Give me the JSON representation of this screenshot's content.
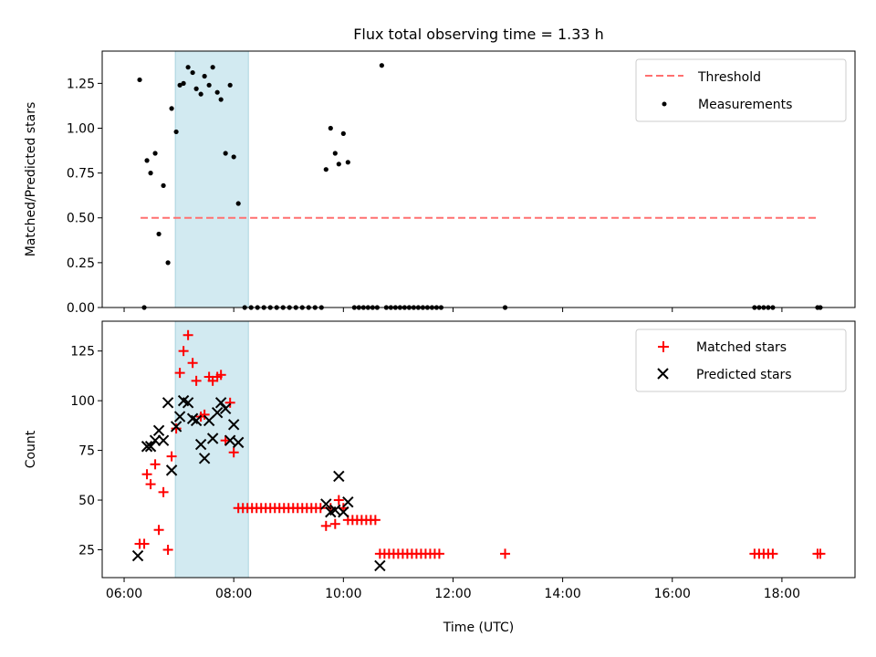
{
  "figure": {
    "title": "Flux total observing time = 1.33 h"
  },
  "chart_data": [
    {
      "type": "scatter",
      "panel": "top",
      "xlabel": "",
      "ylabel": "Matched/Predicted stars",
      "xlim": [
        "05:36",
        "19:20"
      ],
      "ylim": [
        0,
        1.43
      ],
      "yticks": [
        "0.00",
        "0.25",
        "0.50",
        "0.75",
        "1.00",
        "1.25"
      ],
      "ytick_values": [
        0,
        0.25,
        0.5,
        0.75,
        1.0,
        1.25
      ],
      "highlight_span": {
        "start": "06:56",
        "end": "08:16",
        "color": "#add8e6"
      },
      "legend": {
        "position": "top-right",
        "entries": [
          "Threshold",
          "Measurements"
        ]
      },
      "threshold": {
        "name": "Threshold",
        "x_start": "06:18",
        "x_end": "18:40",
        "y": 0.5,
        "color": "#ff7070",
        "style": "dashed"
      },
      "series": [
        {
          "name": "Measurements",
          "marker": "dot",
          "color": "#000000",
          "points": [
            [
              "06:17",
              1.27
            ],
            [
              "06:22",
              0.0
            ],
            [
              "06:25",
              0.82
            ],
            [
              "06:29",
              0.75
            ],
            [
              "06:34",
              0.86
            ],
            [
              "06:38",
              0.41
            ],
            [
              "06:43",
              0.68
            ],
            [
              "06:48",
              0.25
            ],
            [
              "06:52",
              1.11
            ],
            [
              "06:57",
              0.98
            ],
            [
              "07:01",
              1.24
            ],
            [
              "07:05",
              1.25
            ],
            [
              "07:10",
              1.34
            ],
            [
              "07:15",
              1.31
            ],
            [
              "07:19",
              1.22
            ],
            [
              "07:24",
              1.19
            ],
            [
              "07:28",
              1.29
            ],
            [
              "07:33",
              1.24
            ],
            [
              "07:37",
              1.34
            ],
            [
              "07:42",
              1.2
            ],
            [
              "07:46",
              1.16
            ],
            [
              "07:51",
              0.86
            ],
            [
              "07:56",
              1.24
            ],
            [
              "08:00",
              0.84
            ],
            [
              "08:05",
              0.58
            ],
            [
              "08:12",
              0.0
            ],
            [
              "08:19",
              0.0
            ],
            [
              "08:26",
              0.0
            ],
            [
              "08:33",
              0.0
            ],
            [
              "08:40",
              0.0
            ],
            [
              "08:47",
              0.0
            ],
            [
              "08:54",
              0.0
            ],
            [
              "09:01",
              0.0
            ],
            [
              "09:08",
              0.0
            ],
            [
              "09:15",
              0.0
            ],
            [
              "09:22",
              0.0
            ],
            [
              "09:29",
              0.0
            ],
            [
              "09:36",
              0.0
            ],
            [
              "09:41",
              0.77
            ],
            [
              "09:46",
              1.0
            ],
            [
              "09:51",
              0.86
            ],
            [
              "09:55",
              0.8
            ],
            [
              "10:00",
              0.97
            ],
            [
              "10:05",
              0.81
            ],
            [
              "10:12",
              0.0
            ],
            [
              "10:17",
              0.0
            ],
            [
              "10:22",
              0.0
            ],
            [
              "10:27",
              0.0
            ],
            [
              "10:32",
              0.0
            ],
            [
              "10:37",
              0.0
            ],
            [
              "10:42",
              1.35
            ],
            [
              "10:47",
              0.0
            ],
            [
              "10:52",
              0.0
            ],
            [
              "10:57",
              0.0
            ],
            [
              "11:02",
              0.0
            ],
            [
              "11:07",
              0.0
            ],
            [
              "11:12",
              0.0
            ],
            [
              "11:17",
              0.0
            ],
            [
              "11:22",
              0.0
            ],
            [
              "11:27",
              0.0
            ],
            [
              "11:32",
              0.0
            ],
            [
              "11:37",
              0.0
            ],
            [
              "11:42",
              0.0
            ],
            [
              "11:47",
              0.0
            ],
            [
              "12:57",
              0.0
            ],
            [
              "17:30",
              0.0
            ],
            [
              "17:35",
              0.0
            ],
            [
              "17:40",
              0.0
            ],
            [
              "17:45",
              0.0
            ],
            [
              "17:50",
              0.0
            ],
            [
              "18:39",
              0.0
            ],
            [
              "18:42",
              0.0
            ]
          ]
        }
      ]
    },
    {
      "type": "scatter",
      "panel": "bottom",
      "xlabel": "Time (UTC)",
      "ylabel": "Count",
      "xlim": [
        "05:36",
        "19:20"
      ],
      "xticks": [
        "06:00",
        "08:00",
        "10:00",
        "12:00",
        "14:00",
        "16:00",
        "18:00"
      ],
      "ylim": [
        11,
        140
      ],
      "yticks": [
        "25",
        "50",
        "75",
        "100",
        "125"
      ],
      "ytick_values": [
        25,
        50,
        75,
        100,
        125
      ],
      "highlight_span": {
        "start": "06:56",
        "end": "08:16",
        "color": "#add8e6"
      },
      "legend": {
        "position": "top-right",
        "entries": [
          "Matched stars",
          "Predicted stars"
        ]
      },
      "series": [
        {
          "name": "Matched stars",
          "marker": "plus",
          "color": "#ff0000",
          "points": [
            [
              "06:17",
              28
            ],
            [
              "06:22",
              28
            ],
            [
              "06:25",
              63
            ],
            [
              "06:29",
              58
            ],
            [
              "06:34",
              68
            ],
            [
              "06:38",
              35
            ],
            [
              "06:43",
              54
            ],
            [
              "06:48",
              25
            ],
            [
              "06:52",
              72
            ],
            [
              "06:57",
              86
            ],
            [
              "07:01",
              114
            ],
            [
              "07:05",
              125
            ],
            [
              "07:10",
              133
            ],
            [
              "07:15",
              119
            ],
            [
              "07:19",
              110
            ],
            [
              "07:24",
              92
            ],
            [
              "07:28",
              93
            ],
            [
              "07:33",
              112
            ],
            [
              "07:37",
              110
            ],
            [
              "07:42",
              112
            ],
            [
              "07:46",
              113
            ],
            [
              "07:51",
              80
            ],
            [
              "07:56",
              99
            ],
            [
              "08:00",
              74
            ],
            [
              "08:05",
              46
            ],
            [
              "08:10",
              46
            ],
            [
              "08:15",
              46
            ],
            [
              "08:20",
              46
            ],
            [
              "08:25",
              46
            ],
            [
              "08:30",
              46
            ],
            [
              "08:35",
              46
            ],
            [
              "08:40",
              46
            ],
            [
              "08:45",
              46
            ],
            [
              "08:50",
              46
            ],
            [
              "08:55",
              46
            ],
            [
              "09:00",
              46
            ],
            [
              "09:05",
              46
            ],
            [
              "09:10",
              46
            ],
            [
              "09:15",
              46
            ],
            [
              "09:20",
              46
            ],
            [
              "09:25",
              46
            ],
            [
              "09:30",
              46
            ],
            [
              "09:35",
              46
            ],
            [
              "09:41",
              37
            ],
            [
              "09:46",
              46
            ],
            [
              "09:51",
              38
            ],
            [
              "09:55",
              50
            ],
            [
              "10:00",
              46
            ],
            [
              "10:05",
              40
            ],
            [
              "10:10",
              40
            ],
            [
              "10:15",
              40
            ],
            [
              "10:20",
              40
            ],
            [
              "10:25",
              40
            ],
            [
              "10:30",
              40
            ],
            [
              "10:35",
              40
            ],
            [
              "10:40",
              23
            ],
            [
              "10:45",
              23
            ],
            [
              "10:50",
              23
            ],
            [
              "10:55",
              23
            ],
            [
              "11:00",
              23
            ],
            [
              "11:05",
              23
            ],
            [
              "11:10",
              23
            ],
            [
              "11:15",
              23
            ],
            [
              "11:20",
              23
            ],
            [
              "11:25",
              23
            ],
            [
              "11:30",
              23
            ],
            [
              "11:35",
              23
            ],
            [
              "11:40",
              23
            ],
            [
              "11:45",
              23
            ],
            [
              "12:57",
              23
            ],
            [
              "17:30",
              23
            ],
            [
              "17:35",
              23
            ],
            [
              "17:40",
              23
            ],
            [
              "17:45",
              23
            ],
            [
              "17:50",
              23
            ],
            [
              "18:39",
              23
            ],
            [
              "18:42",
              23
            ]
          ]
        },
        {
          "name": "Predicted stars",
          "marker": "x",
          "color": "#000000",
          "points": [
            [
              "06:15",
              22
            ],
            [
              "06:25",
              77
            ],
            [
              "06:29",
              77
            ],
            [
              "06:34",
              80
            ],
            [
              "06:38",
              85
            ],
            [
              "06:43",
              80
            ],
            [
              "06:48",
              99
            ],
            [
              "06:52",
              65
            ],
            [
              "06:57",
              87
            ],
            [
              "07:01",
              92
            ],
            [
              "07:05",
              100
            ],
            [
              "07:10",
              99
            ],
            [
              "07:15",
              91
            ],
            [
              "07:19",
              90
            ],
            [
              "07:24",
              78
            ],
            [
              "07:28",
              71
            ],
            [
              "07:33",
              90
            ],
            [
              "07:37",
              81
            ],
            [
              "07:42",
              94
            ],
            [
              "07:46",
              99
            ],
            [
              "07:51",
              96
            ],
            [
              "07:56",
              80
            ],
            [
              "08:00",
              88
            ],
            [
              "08:05",
              79
            ],
            [
              "09:41",
              48
            ],
            [
              "09:46",
              44
            ],
            [
              "09:51",
              45
            ],
            [
              "09:55",
              62
            ],
            [
              "10:00",
              44
            ],
            [
              "10:05",
              49
            ],
            [
              "10:40",
              17
            ]
          ]
        }
      ]
    }
  ]
}
